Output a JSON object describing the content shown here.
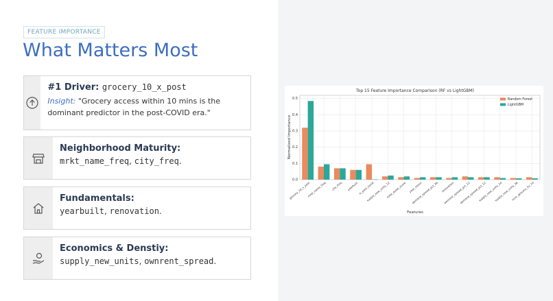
{
  "tag": "FEATURE IMPORTANCE",
  "title": "What Matters Most",
  "cards": [
    {
      "heading": "#1 Driver:",
      "heading_code": "grocery_10_x_post",
      "insight_label": "Insight:",
      "insight": "\"Grocery access within 10 mins is the dominant predictor in the post-COVID era.\""
    },
    {
      "heading": "Neighborhood Maturity:",
      "body": [
        {
          "code": "mrkt_name_freq"
        },
        {
          "text": ", "
        },
        {
          "code": "city_freq"
        },
        {
          "text": "."
        }
      ]
    },
    {
      "heading": "Fundamentals:",
      "body": [
        {
          "code": "yearbuilt"
        },
        {
          "text": ", "
        },
        {
          "code": "renovation"
        },
        {
          "text": "."
        }
      ]
    },
    {
      "heading": "Economics & Denstiy:",
      "body": [
        {
          "code": "supply_new_units"
        },
        {
          "text": ", "
        },
        {
          "code": "ownrent_spread"
        },
        {
          "text": "."
        }
      ]
    }
  ],
  "chart_data": {
    "type": "bar",
    "title": "Top 15 Feature Importance Comparison (RF vs LightGBM)",
    "x_label": "Features",
    "y_label": "Normalized Importance",
    "categories": [
      "grocery_10_x_post",
      "mrkt_name_freq",
      "city_freq",
      "yearbuilt",
      "is_post_covid",
      "supply_new_units_12",
      "total_asset_score",
      "year_renov",
      "demand_spread_pct_36",
      "renovation",
      "ownrent_spread_pct_12",
      "demand_spread_pct_12",
      "supply_new_units_24",
      "supply_new_units_36",
      "num_grocery_5x_10"
    ],
    "series": [
      {
        "name": "Random Forest",
        "color": "#ea8a5e",
        "values": [
          0.32,
          0.08,
          0.07,
          0.06,
          0.095,
          0.02,
          0.015,
          0.01,
          0.015,
          0.01,
          0.02,
          0.015,
          0.015,
          0.01,
          0.015
        ]
      },
      {
        "name": "LightGBM",
        "color": "#2ba89a",
        "values": [
          0.485,
          0.095,
          0.07,
          0.06,
          0.002,
          0.025,
          0.02,
          0.015,
          0.015,
          0.015,
          0.015,
          0.015,
          0.01,
          0.008,
          0.008
        ]
      }
    ],
    "ylim": [
      0,
      0.52
    ],
    "yticks": [
      {
        "value": 0,
        "label": "0.0"
      },
      0.1,
      0.2,
      0.3,
      0.4,
      0.5
    ],
    "grid": true,
    "legend": "upper right"
  }
}
